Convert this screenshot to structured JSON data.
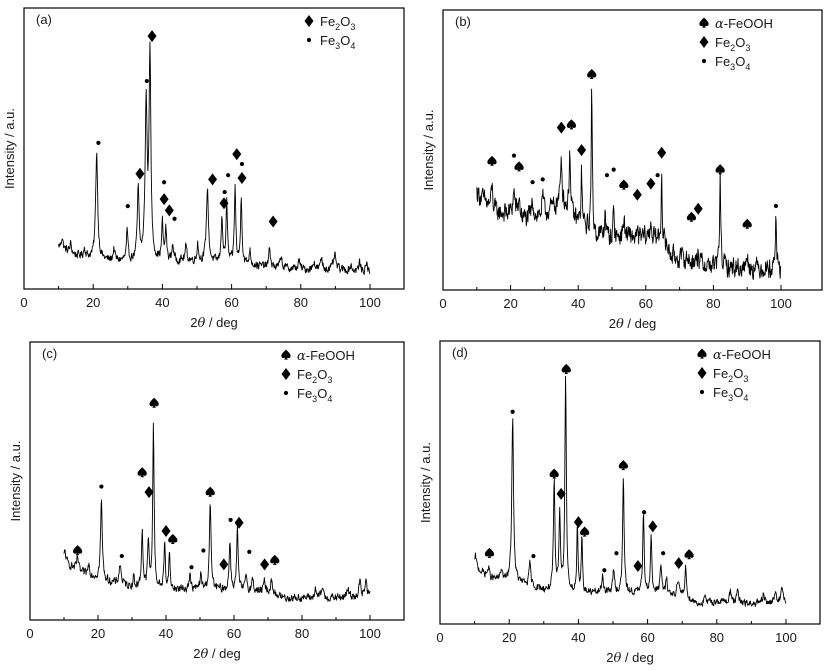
{
  "chart_data": [
    {
      "type": "line",
      "panel_label": "(a)",
      "xlabel_prefix": "2",
      "xlabel_symbol": "θ",
      "xlabel_suffix": " / deg",
      "ylabel": "Intensity / a.u.",
      "xlim": [
        0,
        110
      ],
      "ylim": [
        0,
        100
      ],
      "xticks": [
        "0",
        "20",
        "40",
        "60",
        "80",
        "100"
      ],
      "xtick_values": [
        0,
        20,
        40,
        60,
        80,
        100
      ],
      "legend_position": "top-right",
      "legend": [
        {
          "symbol": "diamond",
          "label": "Fe",
          "sub1": "2",
          "mid": "O",
          "sub2": "3"
        },
        {
          "symbol": "dot",
          "label": "Fe",
          "sub1": "3",
          "mid": "O",
          "sub2": "4"
        }
      ],
      "baseline": [
        [
          10,
          15
        ],
        [
          15,
          12
        ],
        [
          20,
          11
        ],
        [
          25,
          10
        ],
        [
          30,
          10
        ],
        [
          40,
          10
        ],
        [
          50,
          10
        ],
        [
          60,
          9
        ],
        [
          70,
          8
        ],
        [
          80,
          7
        ],
        [
          90,
          7
        ],
        [
          100,
          6
        ]
      ],
      "peaks": [
        [
          11,
          4,
          0.3
        ],
        [
          13.5,
          3,
          0.3
        ],
        [
          17.5,
          3,
          0.3
        ],
        [
          21,
          38,
          0.35
        ],
        [
          26,
          4,
          0.3
        ],
        [
          29.8,
          10,
          0.25
        ],
        [
          33,
          25,
          0.3
        ],
        [
          35.3,
          55,
          0.35
        ],
        [
          36.4,
          74,
          0.3
        ],
        [
          40,
          13,
          0.25
        ],
        [
          41,
          11,
          0.25
        ],
        [
          43,
          6,
          0.25
        ],
        [
          46.8,
          5,
          0.3
        ],
        [
          50.2,
          7,
          0.2
        ],
        [
          53,
          26,
          0.35
        ],
        [
          57.2,
          17,
          0.25
        ],
        [
          58.6,
          21,
          0.25
        ],
        [
          61,
          27,
          0.25
        ],
        [
          62.8,
          24,
          0.25
        ],
        [
          65.3,
          5,
          0.3
        ],
        [
          71,
          7,
          0.25
        ],
        [
          74.3,
          4,
          0.3
        ],
        [
          79.5,
          3,
          0.3
        ],
        [
          83.8,
          3,
          0.3
        ],
        [
          86,
          4,
          0.3
        ],
        [
          89.8,
          5,
          0.4
        ],
        [
          94.5,
          2,
          0.3
        ],
        [
          97,
          3,
          0.3
        ],
        [
          99,
          3,
          0.3
        ]
      ],
      "noise": 2.0,
      "markers": [
        {
          "symbol": "diamond",
          "x": 37,
          "y": 90
        },
        {
          "symbol": "dot",
          "x": 35.5,
          "y": 74
        },
        {
          "symbol": "dot",
          "x": 21.5,
          "y": 52
        },
        {
          "symbol": "diamond",
          "x": 33.5,
          "y": 41
        },
        {
          "symbol": "dot",
          "x": 30,
          "y": 29.5
        },
        {
          "symbol": "dot",
          "x": 40.5,
          "y": 38
        },
        {
          "symbol": "diamond",
          "x": 40.5,
          "y": 32
        },
        {
          "symbol": "diamond",
          "x": 42,
          "y": 28
        },
        {
          "symbol": "dot",
          "x": 43.5,
          "y": 25
        },
        {
          "symbol": "diamond",
          "x": 54.5,
          "y": 39
        },
        {
          "symbol": "dot",
          "x": 59,
          "y": 40.5
        },
        {
          "symbol": "dot",
          "x": 58,
          "y": 34.5
        },
        {
          "symbol": "diamond",
          "x": 57.8,
          "y": 30.5
        },
        {
          "symbol": "diamond",
          "x": 61.5,
          "y": 48
        },
        {
          "symbol": "dot",
          "x": 63,
          "y": 44.5
        },
        {
          "symbol": "diamond",
          "x": 63,
          "y": 39.5
        },
        {
          "symbol": "diamond",
          "x": 72,
          "y": 24
        }
      ]
    },
    {
      "type": "line",
      "panel_label": "(b)",
      "xlabel_prefix": "2",
      "xlabel_symbol": "θ",
      "xlabel_suffix": " / deg",
      "ylabel": "Intensity / a.u.",
      "xlim": [
        0,
        110
      ],
      "ylim": [
        0,
        100
      ],
      "xticks": [
        "0",
        "20",
        "40",
        "60",
        "80",
        "100"
      ],
      "xtick_values": [
        0,
        20,
        40,
        60,
        80,
        100
      ],
      "legend_position": "top-right",
      "legend": [
        {
          "symbol": "spade",
          "label": "α-FeOOH"
        },
        {
          "symbol": "diamond",
          "label": "Fe",
          "sub1": "2",
          "mid": "O",
          "sub2": "3"
        },
        {
          "symbol": "dot",
          "label": "Fe",
          "sub1": "3",
          "mid": "O",
          "sub2": "4"
        }
      ],
      "baseline": [
        [
          10,
          35
        ],
        [
          15,
          28
        ],
        [
          20,
          27
        ],
        [
          25,
          25
        ],
        [
          30,
          27
        ],
        [
          35,
          32
        ],
        [
          40,
          24
        ],
        [
          45,
          20
        ],
        [
          50,
          19
        ],
        [
          55,
          19
        ],
        [
          60,
          19
        ],
        [
          65,
          18
        ],
        [
          68,
          12
        ],
        [
          72,
          11
        ],
        [
          78,
          9
        ],
        [
          85,
          8
        ],
        [
          95,
          8
        ],
        [
          100,
          7
        ]
      ],
      "peaks": [
        [
          14.5,
          8,
          0.3
        ],
        [
          21,
          8,
          0.4
        ],
        [
          22.5,
          6,
          0.3
        ],
        [
          26.5,
          5,
          0.5
        ],
        [
          29.5,
          6,
          0.3
        ],
        [
          35,
          16,
          0.25
        ],
        [
          37.5,
          24,
          0.2
        ],
        [
          41,
          19,
          0.2
        ],
        [
          44,
          50,
          0.2
        ],
        [
          48,
          11,
          0.15
        ],
        [
          50.5,
          13,
          0.15
        ],
        [
          53.5,
          6,
          0.3
        ],
        [
          61.5,
          6,
          0.25
        ],
        [
          64.7,
          27,
          0.15
        ],
        [
          75.5,
          6,
          0.15
        ],
        [
          82,
          33,
          0.2
        ],
        [
          90,
          6,
          0.2
        ],
        [
          98.5,
          21,
          0.2
        ]
      ],
      "noise": 5.0,
      "markers": [
        {
          "symbol": "spade",
          "x": 44,
          "y": 77
        },
        {
          "symbol": "spade",
          "x": 38,
          "y": 59
        },
        {
          "symbol": "diamond",
          "x": 35,
          "y": 58
        },
        {
          "symbol": "diamond",
          "x": 41,
          "y": 50
        },
        {
          "symbol": "spade",
          "x": 14.5,
          "y": 46
        },
        {
          "symbol": "dot",
          "x": 21,
          "y": 48
        },
        {
          "symbol": "spade",
          "x": 22.5,
          "y": 44
        },
        {
          "symbol": "dot",
          "x": 26.5,
          "y": 38.5
        },
        {
          "symbol": "dot",
          "x": 29.5,
          "y": 39.5
        },
        {
          "symbol": "dot",
          "x": 48.5,
          "y": 41
        },
        {
          "symbol": "dot",
          "x": 50.5,
          "y": 43
        },
        {
          "symbol": "spade",
          "x": 53.5,
          "y": 37.5
        },
        {
          "symbol": "diamond",
          "x": 57.5,
          "y": 34
        },
        {
          "symbol": "diamond",
          "x": 61.5,
          "y": 38
        },
        {
          "symbol": "dot",
          "x": 63.5,
          "y": 41
        },
        {
          "symbol": "diamond",
          "x": 64.7,
          "y": 49
        },
        {
          "symbol": "spade",
          "x": 82,
          "y": 43
        },
        {
          "symbol": "diamond",
          "x": 75.5,
          "y": 29
        },
        {
          "symbol": "spade",
          "x": 73.5,
          "y": 26
        },
        {
          "symbol": "spade",
          "x": 90,
          "y": 23.5
        },
        {
          "symbol": "dot",
          "x": 98.5,
          "y": 30
        }
      ]
    },
    {
      "type": "line",
      "panel_label": "(c)",
      "xlabel_prefix": "2",
      "xlabel_symbol": "θ",
      "xlabel_suffix": " / deg",
      "ylabel": "Intensity / a.u.",
      "xlim": [
        0,
        110
      ],
      "ylim": [
        0,
        100
      ],
      "xticks": [
        "0",
        "20",
        "40",
        "60",
        "80",
        "100"
      ],
      "xtick_values": [
        0,
        20,
        40,
        60,
        80,
        100
      ],
      "legend_position": "top-right",
      "legend": [
        {
          "symbol": "spade",
          "label": "α-FeOOH"
        },
        {
          "symbol": "diamond",
          "label": "Fe",
          "sub1": "2",
          "mid": "O",
          "sub2": "3"
        },
        {
          "symbol": "dot",
          "label": "Fe",
          "sub1": "3",
          "mid": "O",
          "sub2": "4"
        }
      ],
      "baseline": [
        [
          10,
          21
        ],
        [
          15,
          17
        ],
        [
          20,
          15
        ],
        [
          25,
          13
        ],
        [
          30,
          12
        ],
        [
          40,
          11
        ],
        [
          50,
          11
        ],
        [
          60,
          11
        ],
        [
          70,
          10
        ],
        [
          75,
          8
        ],
        [
          80,
          8
        ],
        [
          90,
          8
        ],
        [
          100,
          9
        ]
      ],
      "peaks": [
        [
          10.3,
          4,
          0.3
        ],
        [
          14,
          5,
          0.3
        ],
        [
          17.3,
          4,
          0.3
        ],
        [
          21,
          28,
          0.3
        ],
        [
          26.5,
          7,
          0.4
        ],
        [
          30.5,
          4,
          0.2
        ],
        [
          33,
          21,
          0.25
        ],
        [
          34.8,
          17,
          0.25
        ],
        [
          36.3,
          58,
          0.25
        ],
        [
          39.6,
          16,
          0.25
        ],
        [
          41,
          14,
          0.2
        ],
        [
          47,
          5,
          0.3
        ],
        [
          50.2,
          5,
          0.3
        ],
        [
          53,
          30,
          0.3
        ],
        [
          58.8,
          18,
          0.25
        ],
        [
          61,
          22,
          0.25
        ],
        [
          63.6,
          6,
          0.25
        ],
        [
          65.5,
          4,
          0.3
        ],
        [
          69,
          4,
          0.3
        ],
        [
          71,
          6,
          0.25
        ],
        [
          84,
          3,
          0.3
        ],
        [
          86,
          4,
          0.3
        ],
        [
          93.5,
          3,
          0.3
        ],
        [
          97,
          5,
          0.3
        ],
        [
          98.8,
          5,
          0.3
        ]
      ],
      "noise": 2.0,
      "markers": [
        {
          "symbol": "spade",
          "x": 36.5,
          "y": 78
        },
        {
          "symbol": "spade",
          "x": 33,
          "y": 53
        },
        {
          "symbol": "diamond",
          "x": 35,
          "y": 46
        },
        {
          "symbol": "dot",
          "x": 21,
          "y": 48
        },
        {
          "symbol": "spade",
          "x": 53,
          "y": 46
        },
        {
          "symbol": "diamond",
          "x": 40,
          "y": 32
        },
        {
          "symbol": "spade",
          "x": 42,
          "y": 29
        },
        {
          "symbol": "dot",
          "x": 59,
          "y": 36
        },
        {
          "symbol": "diamond",
          "x": 61.5,
          "y": 35
        },
        {
          "symbol": "spade",
          "x": 14,
          "y": 25
        },
        {
          "symbol": "dot",
          "x": 27,
          "y": 23
        },
        {
          "symbol": "dot",
          "x": 47.5,
          "y": 19
        },
        {
          "symbol": "dot",
          "x": 51,
          "y": 25
        },
        {
          "symbol": "diamond",
          "x": 57,
          "y": 20
        },
        {
          "symbol": "dot",
          "x": 64.5,
          "y": 24.5
        },
        {
          "symbol": "diamond",
          "x": 69,
          "y": 20
        },
        {
          "symbol": "spade",
          "x": 72,
          "y": 21.5
        }
      ]
    },
    {
      "type": "line",
      "panel_label": "(d)",
      "xlabel_prefix": "2",
      "xlabel_symbol": "θ",
      "xlabel_suffix": " / deg",
      "ylabel": "Intensity / a.u.",
      "xlim": [
        0,
        110
      ],
      "ylim": [
        0,
        100
      ],
      "xticks": [
        "0",
        "20",
        "40",
        "60",
        "80",
        "100"
      ],
      "xtick_values": [
        0,
        20,
        40,
        60,
        80,
        100
      ],
      "legend_position": "top-right",
      "legend": [
        {
          "symbol": "spade",
          "label": "α-FeOOH"
        },
        {
          "symbol": "diamond",
          "label": "Fe",
          "sub1": "2",
          "mid": "O",
          "sub2": "3"
        },
        {
          "symbol": "dot",
          "label": "Fe",
          "sub1": "3",
          "mid": "O",
          "sub2": "4"
        }
      ],
      "baseline": [
        [
          10,
          20
        ],
        [
          15,
          16
        ],
        [
          20,
          15
        ],
        [
          25,
          14
        ],
        [
          30,
          12
        ],
        [
          40,
          11
        ],
        [
          50,
          11
        ],
        [
          60,
          11
        ],
        [
          70,
          10
        ],
        [
          75,
          7
        ],
        [
          80,
          8
        ],
        [
          90,
          7
        ],
        [
          100,
          8
        ]
      ],
      "peaks": [
        [
          10.3,
          4,
          0.3
        ],
        [
          14,
          3,
          0.3
        ],
        [
          17.8,
          4,
          0.3
        ],
        [
          21,
          58,
          0.3
        ],
        [
          26,
          8,
          0.25
        ],
        [
          33,
          38,
          0.25
        ],
        [
          34.6,
          28,
          0.25
        ],
        [
          36.3,
          76,
          0.25
        ],
        [
          39.7,
          23,
          0.2
        ],
        [
          41,
          21,
          0.2
        ],
        [
          47,
          6,
          0.3
        ],
        [
          50.2,
          8,
          0.3
        ],
        [
          53,
          41,
          0.25
        ],
        [
          58.8,
          27,
          0.25
        ],
        [
          61,
          20,
          0.25
        ],
        [
          63.8,
          10,
          0.3
        ],
        [
          65.5,
          5,
          0.3
        ],
        [
          68.8,
          6,
          0.3
        ],
        [
          71,
          11,
          0.25
        ],
        [
          76.5,
          2,
          0.3
        ],
        [
          84,
          4,
          0.4
        ],
        [
          86,
          4,
          0.3
        ],
        [
          93.5,
          3,
          0.3
        ],
        [
          97,
          4,
          0.3
        ],
        [
          98.8,
          5,
          0.3
        ]
      ],
      "noise": 1.8,
      "markers": [
        {
          "symbol": "spade",
          "x": 36.5,
          "y": 90
        },
        {
          "symbol": "dot",
          "x": 21,
          "y": 75
        },
        {
          "symbol": "spade",
          "x": 33,
          "y": 53
        },
        {
          "symbol": "diamond",
          "x": 35,
          "y": 46
        },
        {
          "symbol": "spade",
          "x": 53,
          "y": 56
        },
        {
          "symbol": "diamond",
          "x": 40,
          "y": 36
        },
        {
          "symbol": "spade",
          "x": 41.8,
          "y": 32.5
        },
        {
          "symbol": "dot",
          "x": 59,
          "y": 39.5
        },
        {
          "symbol": "diamond",
          "x": 61.5,
          "y": 34.5
        },
        {
          "symbol": "spade",
          "x": 14.3,
          "y": 25
        },
        {
          "symbol": "dot",
          "x": 27,
          "y": 24
        },
        {
          "symbol": "dot",
          "x": 47.5,
          "y": 19
        },
        {
          "symbol": "dot",
          "x": 51,
          "y": 25
        },
        {
          "symbol": "diamond",
          "x": 57.2,
          "y": 20.5
        },
        {
          "symbol": "dot",
          "x": 64.5,
          "y": 25
        },
        {
          "symbol": "diamond",
          "x": 69,
          "y": 21.5
        },
        {
          "symbol": "spade",
          "x": 72,
          "y": 24.5
        }
      ]
    }
  ]
}
